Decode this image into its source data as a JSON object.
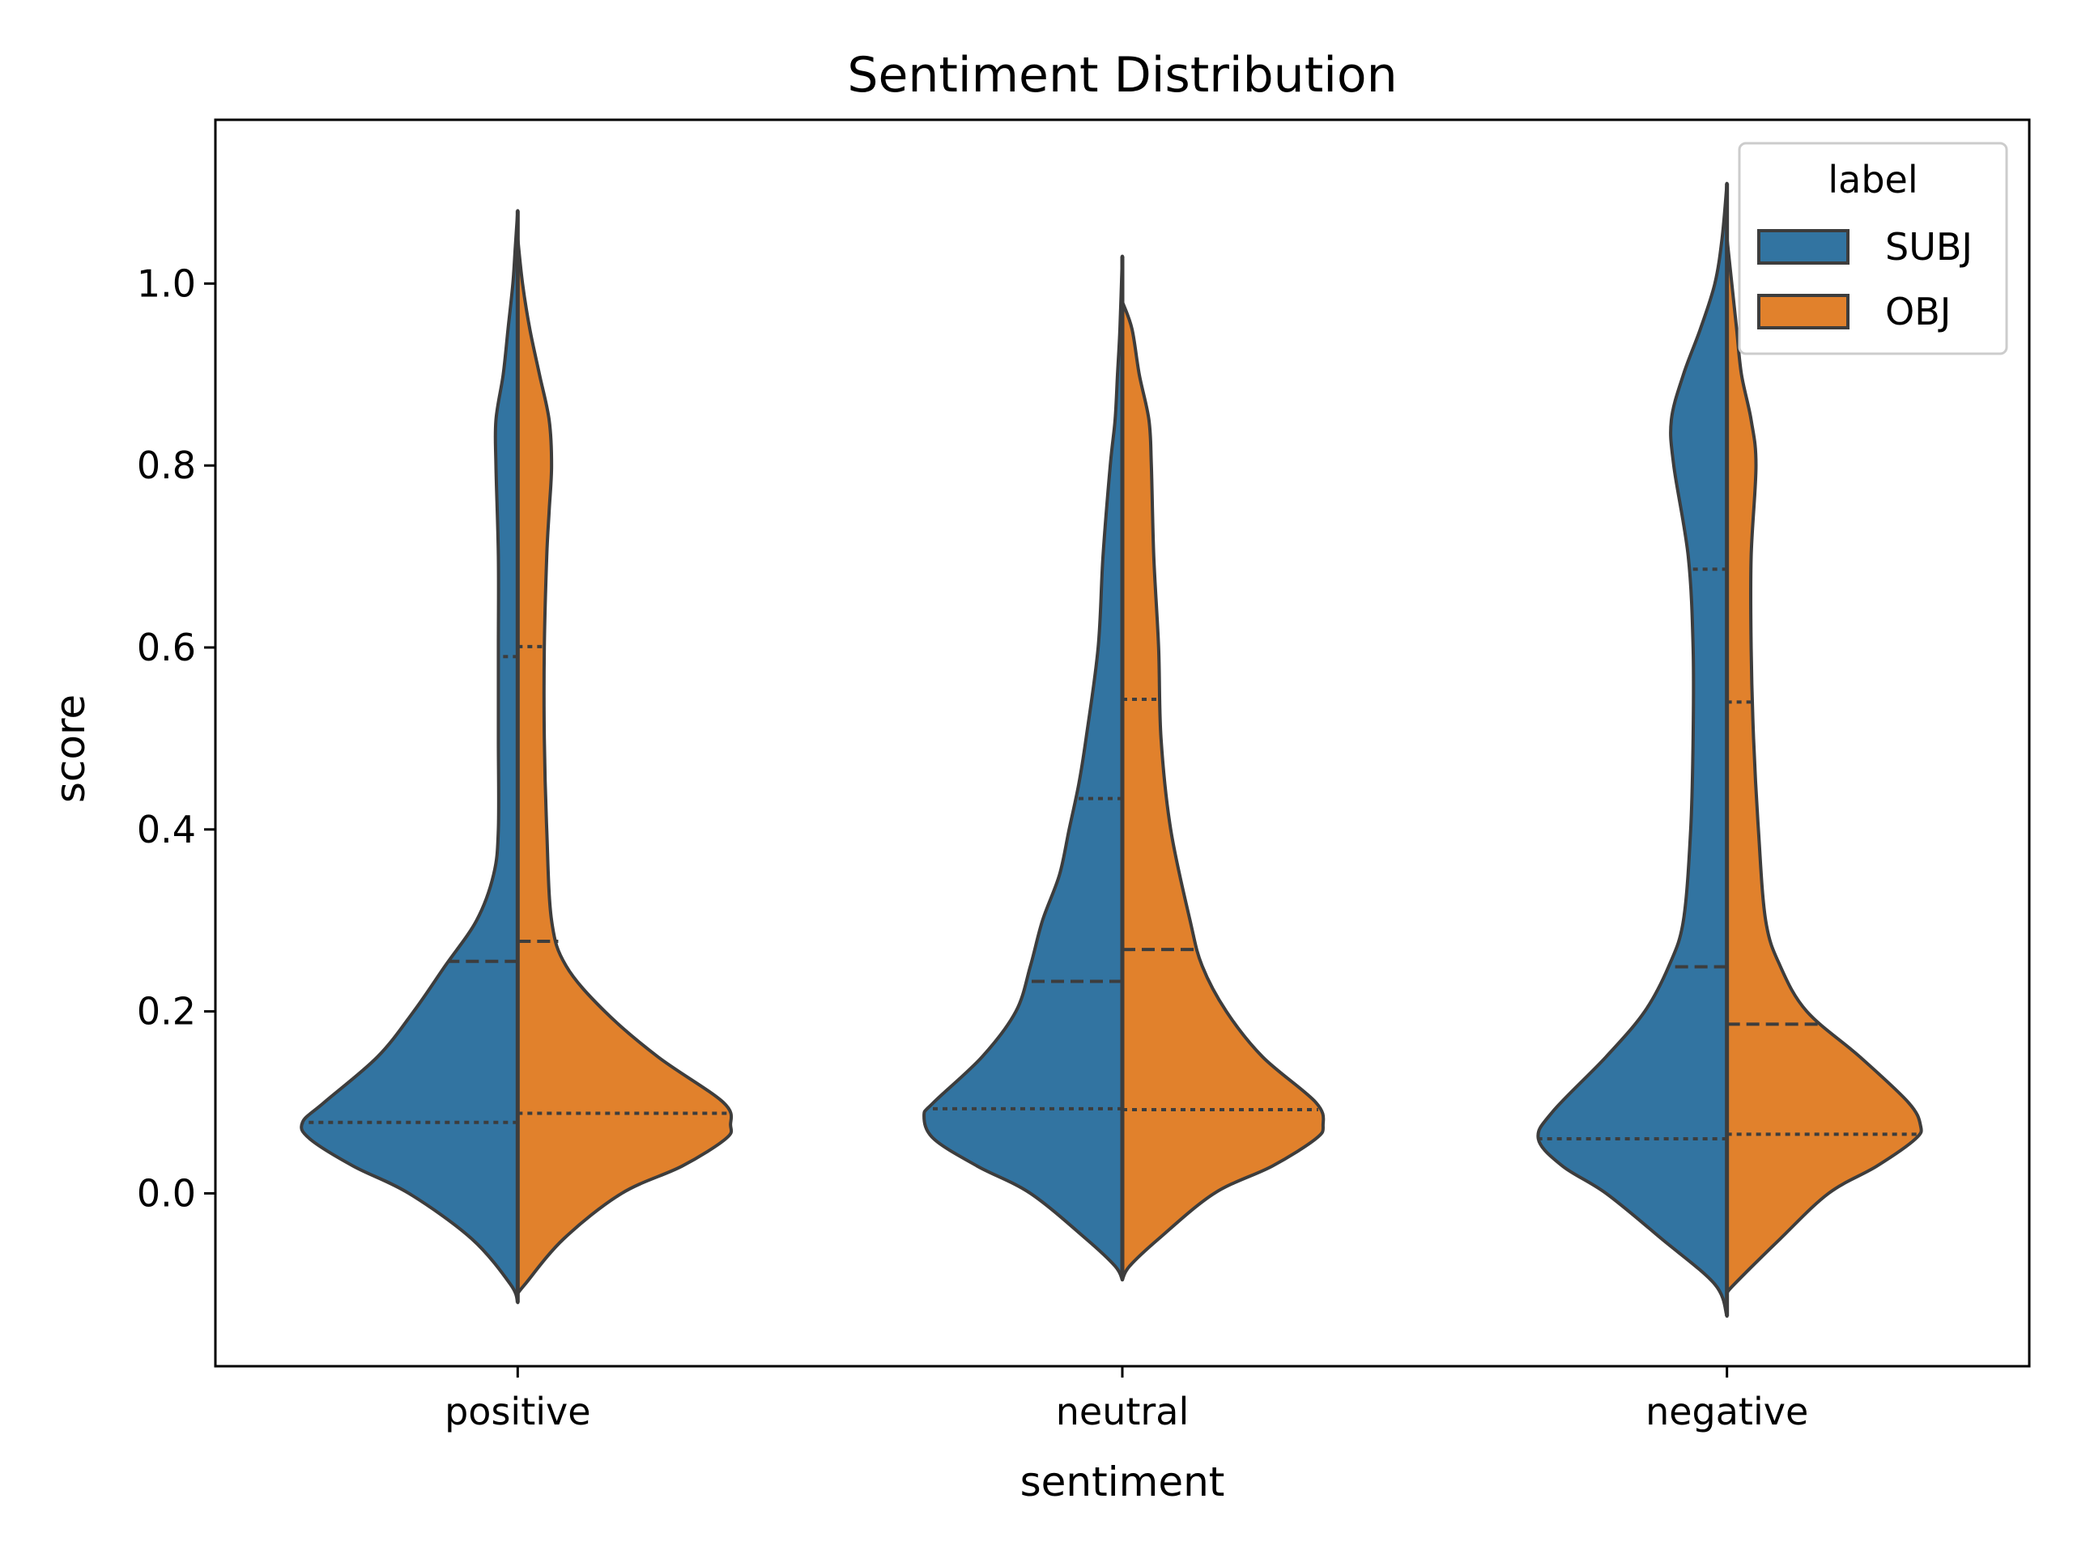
{
  "chart_data": {
    "type": "violin",
    "split": true,
    "title": "Sentiment Distribution",
    "xlabel": "sentiment",
    "ylabel": "score",
    "categories": [
      "positive",
      "neutral",
      "negative"
    ],
    "ylim": [
      -0.19,
      1.18
    ],
    "yticks": [
      0.0,
      0.2,
      0.4,
      0.6,
      0.8,
      1.0
    ],
    "ytick_labels": [
      "0.0",
      "0.2",
      "0.4",
      "0.6",
      "0.8",
      "1.0"
    ],
    "grid": false,
    "inner": "quartile",
    "legend": {
      "title": "label",
      "position": "top-right",
      "entries": [
        "SUBJ",
        "OBJ"
      ]
    },
    "series": [
      {
        "name": "SUBJ",
        "color": "#3274a1",
        "violins": [
          {
            "category": "positive",
            "y_min": -0.12,
            "y_max": 1.08,
            "quartiles": [
              0.078,
              0.255,
              0.59
            ],
            "profile": [
              [
                -0.12,
                0.0
              ],
              [
                -0.1,
                0.03
              ],
              [
                -0.05,
                0.19
              ],
              [
                0.0,
                0.45
              ],
              [
                0.03,
                0.68
              ],
              [
                0.06,
                0.86
              ],
              [
                0.078,
                0.89
              ],
              [
                0.1,
                0.8
              ],
              [
                0.15,
                0.58
              ],
              [
                0.2,
                0.43
              ],
              [
                0.25,
                0.3
              ],
              [
                0.3,
                0.17
              ],
              [
                0.35,
                0.1
              ],
              [
                0.4,
                0.08
              ],
              [
                0.5,
                0.08
              ],
              [
                0.6,
                0.08
              ],
              [
                0.7,
                0.08
              ],
              [
                0.8,
                0.09
              ],
              [
                0.85,
                0.09
              ],
              [
                0.9,
                0.06
              ],
              [
                0.95,
                0.04
              ],
              [
                1.0,
                0.02
              ],
              [
                1.04,
                0.01
              ],
              [
                1.08,
                0.0
              ]
            ]
          },
          {
            "category": "neutral",
            "y_min": -0.095,
            "y_max": 1.03,
            "quartiles": [
              0.093,
              0.233,
              0.434
            ],
            "profile": [
              [
                -0.095,
                0.0
              ],
              [
                -0.08,
                0.03
              ],
              [
                -0.05,
                0.15
              ],
              [
                0.0,
                0.38
              ],
              [
                0.03,
                0.6
              ],
              [
                0.06,
                0.78
              ],
              [
                0.085,
                0.82
              ],
              [
                0.1,
                0.78
              ],
              [
                0.15,
                0.58
              ],
              [
                0.2,
                0.44
              ],
              [
                0.25,
                0.38
              ],
              [
                0.3,
                0.33
              ],
              [
                0.35,
                0.26
              ],
              [
                0.4,
                0.22
              ],
              [
                0.45,
                0.18
              ],
              [
                0.5,
                0.15
              ],
              [
                0.6,
                0.1
              ],
              [
                0.7,
                0.08
              ],
              [
                0.8,
                0.05
              ],
              [
                0.85,
                0.03
              ],
              [
                0.9,
                0.02
              ],
              [
                0.95,
                0.01
              ],
              [
                1.03,
                0.0
              ]
            ]
          },
          {
            "category": "negative",
            "y_min": -0.135,
            "y_max": 1.11,
            "quartiles": [
              0.06,
              0.249,
              0.686
            ],
            "profile": [
              [
                -0.135,
                0.0
              ],
              [
                -0.1,
                0.05
              ],
              [
                -0.05,
                0.27
              ],
              [
                0.0,
                0.5
              ],
              [
                0.03,
                0.68
              ],
              [
                0.06,
                0.78
              ],
              [
                0.09,
                0.72
              ],
              [
                0.15,
                0.5
              ],
              [
                0.2,
                0.34
              ],
              [
                0.25,
                0.24
              ],
              [
                0.3,
                0.18
              ],
              [
                0.4,
                0.15
              ],
              [
                0.5,
                0.14
              ],
              [
                0.6,
                0.14
              ],
              [
                0.7,
                0.16
              ],
              [
                0.8,
                0.22
              ],
              [
                0.85,
                0.23
              ],
              [
                0.9,
                0.18
              ],
              [
                0.95,
                0.11
              ],
              [
                1.0,
                0.05
              ],
              [
                1.05,
                0.02
              ],
              [
                1.11,
                0.0
              ]
            ]
          }
        ]
      },
      {
        "name": "OBJ",
        "color": "#e1812c",
        "violins": [
          {
            "category": "positive",
            "y_min": -0.11,
            "y_max": 1.05,
            "quartiles": [
              0.088,
              0.277,
              0.601
            ],
            "profile": [
              [
                -0.11,
                0.0
              ],
              [
                -0.1,
                0.03
              ],
              [
                -0.05,
                0.19
              ],
              [
                0.0,
                0.43
              ],
              [
                0.03,
                0.68
              ],
              [
                0.06,
                0.86
              ],
              [
                0.075,
                0.88
              ],
              [
                0.1,
                0.85
              ],
              [
                0.15,
                0.58
              ],
              [
                0.2,
                0.36
              ],
              [
                0.25,
                0.2
              ],
              [
                0.3,
                0.14
              ],
              [
                0.4,
                0.12
              ],
              [
                0.5,
                0.11
              ],
              [
                0.6,
                0.11
              ],
              [
                0.7,
                0.12
              ],
              [
                0.75,
                0.13
              ],
              [
                0.8,
                0.14
              ],
              [
                0.85,
                0.13
              ],
              [
                0.9,
                0.09
              ],
              [
                0.95,
                0.05
              ],
              [
                1.0,
                0.02
              ],
              [
                1.05,
                0.0
              ]
            ]
          },
          {
            "category": "neutral",
            "y_min": -0.095,
            "y_max": 0.98,
            "quartiles": [
              0.092,
              0.268,
              0.543
            ],
            "profile": [
              [
                -0.095,
                0.0
              ],
              [
                -0.08,
                0.03
              ],
              [
                -0.05,
                0.15
              ],
              [
                0.0,
                0.38
              ],
              [
                0.03,
                0.62
              ],
              [
                0.06,
                0.8
              ],
              [
                0.075,
                0.83
              ],
              [
                0.1,
                0.8
              ],
              [
                0.15,
                0.58
              ],
              [
                0.2,
                0.43
              ],
              [
                0.25,
                0.33
              ],
              [
                0.3,
                0.28
              ],
              [
                0.4,
                0.2
              ],
              [
                0.5,
                0.16
              ],
              [
                0.6,
                0.15
              ],
              [
                0.7,
                0.13
              ],
              [
                0.8,
                0.12
              ],
              [
                0.85,
                0.11
              ],
              [
                0.9,
                0.07
              ],
              [
                0.95,
                0.04
              ],
              [
                0.98,
                0.0
              ]
            ]
          },
          {
            "category": "negative",
            "y_min": -0.11,
            "y_max": 1.05,
            "quartiles": [
              0.065,
              0.186,
              0.54
            ],
            "profile": [
              [
                -0.11,
                0.0
              ],
              [
                -0.1,
                0.03
              ],
              [
                -0.05,
                0.22
              ],
              [
                0.0,
                0.42
              ],
              [
                0.03,
                0.62
              ],
              [
                0.06,
                0.78
              ],
              [
                0.075,
                0.8
              ],
              [
                0.1,
                0.75
              ],
              [
                0.15,
                0.55
              ],
              [
                0.2,
                0.33
              ],
              [
                0.25,
                0.22
              ],
              [
                0.3,
                0.16
              ],
              [
                0.4,
                0.13
              ],
              [
                0.5,
                0.11
              ],
              [
                0.6,
                0.1
              ],
              [
                0.7,
                0.1
              ],
              [
                0.8,
                0.12
              ],
              [
                0.85,
                0.1
              ],
              [
                0.9,
                0.06
              ],
              [
                0.95,
                0.04
              ],
              [
                1.0,
                0.02
              ],
              [
                1.05,
                0.0
              ]
            ]
          }
        ]
      }
    ]
  }
}
